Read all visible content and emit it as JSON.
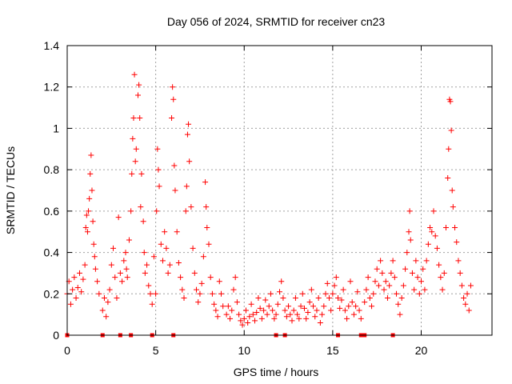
{
  "chart_data": {
    "type": "scatter",
    "title": "Day 056 of 2024, SRMTID for receiver cn23",
    "xlabel": "GPS time / hours",
    "ylabel": "SRMTID / TECUs",
    "xlim": [
      0,
      24
    ],
    "ylim": [
      0,
      1.4
    ],
    "xticks": [
      0,
      5,
      10,
      15,
      20
    ],
    "yticks": [
      0,
      0.2,
      0.4,
      0.6,
      0.8,
      1,
      1.2,
      1.4
    ],
    "xtick_labels": [
      "0",
      "5",
      "10",
      "15",
      "20"
    ],
    "ytick_labels": [
      "0",
      "0.2",
      "0.4",
      "0.6",
      "0.8",
      "1",
      "1.2",
      "1.4"
    ],
    "grid": true,
    "marker": "plus",
    "color": "#ff0000",
    "series": [
      {
        "name": "SRMTID",
        "points": [
          [
            0.0,
            0.2
          ],
          [
            0.1,
            0.26
          ],
          [
            0.2,
            0.15
          ],
          [
            0.3,
            0.22
          ],
          [
            0.4,
            0.28
          ],
          [
            0.5,
            0.18
          ],
          [
            0.6,
            0.23
          ],
          [
            0.7,
            0.3
          ],
          [
            0.8,
            0.21
          ],
          [
            0.9,
            0.27
          ],
          [
            1.0,
            0.34
          ],
          [
            1.05,
            0.52
          ],
          [
            1.1,
            0.58
          ],
          [
            1.15,
            0.5
          ],
          [
            1.2,
            0.6
          ],
          [
            1.25,
            0.66
          ],
          [
            1.3,
            0.78
          ],
          [
            1.35,
            0.87
          ],
          [
            1.4,
            0.7
          ],
          [
            1.45,
            0.55
          ],
          [
            1.5,
            0.44
          ],
          [
            1.55,
            0.38
          ],
          [
            1.6,
            0.32
          ],
          [
            1.7,
            0.26
          ],
          [
            1.8,
            0.2
          ],
          [
            2.0,
            0.12
          ],
          [
            2.1,
            0.18
          ],
          [
            2.2,
            0.09
          ],
          [
            2.3,
            0.16
          ],
          [
            2.4,
            0.22
          ],
          [
            2.5,
            0.34
          ],
          [
            2.6,
            0.42
          ],
          [
            2.7,
            0.28
          ],
          [
            2.8,
            0.18
          ],
          [
            2.9,
            0.57
          ],
          [
            3.0,
            0.3
          ],
          [
            3.1,
            0.26
          ],
          [
            3.2,
            0.36
          ],
          [
            3.3,
            0.4
          ],
          [
            3.35,
            0.32
          ],
          [
            3.4,
            0.28
          ],
          [
            3.5,
            0.46
          ],
          [
            3.6,
            0.6
          ],
          [
            3.65,
            0.78
          ],
          [
            3.7,
            0.95
          ],
          [
            3.75,
            1.05
          ],
          [
            3.8,
            1.26
          ],
          [
            3.85,
            0.84
          ],
          [
            3.9,
            0.9
          ],
          [
            4.0,
            1.16
          ],
          [
            4.05,
            1.21
          ],
          [
            4.1,
            1.05
          ],
          [
            4.15,
            0.62
          ],
          [
            4.2,
            0.78
          ],
          [
            4.3,
            0.55
          ],
          [
            4.35,
            0.4
          ],
          [
            4.4,
            0.3
          ],
          [
            4.5,
            0.34
          ],
          [
            4.6,
            0.24
          ],
          [
            4.7,
            0.2
          ],
          [
            4.8,
            0.15
          ],
          [
            4.9,
            0.38
          ],
          [
            5.0,
            0.2
          ],
          [
            5.05,
            0.6
          ],
          [
            5.1,
            0.9
          ],
          [
            5.15,
            0.8
          ],
          [
            5.2,
            0.72
          ],
          [
            5.3,
            0.44
          ],
          [
            5.4,
            0.36
          ],
          [
            5.5,
            0.5
          ],
          [
            5.6,
            0.42
          ],
          [
            5.7,
            0.3
          ],
          [
            5.8,
            0.34
          ],
          [
            5.9,
            1.05
          ],
          [
            5.95,
            1.2
          ],
          [
            6.0,
            1.14
          ],
          [
            6.05,
            0.82
          ],
          [
            6.1,
            0.7
          ],
          [
            6.2,
            0.5
          ],
          [
            6.3,
            0.35
          ],
          [
            6.4,
            0.28
          ],
          [
            6.5,
            0.22
          ],
          [
            6.6,
            0.18
          ],
          [
            6.7,
            0.6
          ],
          [
            6.75,
            0.72
          ],
          [
            6.8,
            0.97
          ],
          [
            6.85,
            1.02
          ],
          [
            6.9,
            0.84
          ],
          [
            7.0,
            0.62
          ],
          [
            7.1,
            0.42
          ],
          [
            7.2,
            0.3
          ],
          [
            7.3,
            0.22
          ],
          [
            7.4,
            0.16
          ],
          [
            7.5,
            0.2
          ],
          [
            7.6,
            0.25
          ],
          [
            7.7,
            0.38
          ],
          [
            7.8,
            0.74
          ],
          [
            7.85,
            0.62
          ],
          [
            7.9,
            0.52
          ],
          [
            8.0,
            0.44
          ],
          [
            8.1,
            0.28
          ],
          [
            8.2,
            0.2
          ],
          [
            8.3,
            0.15
          ],
          [
            8.4,
            0.12
          ],
          [
            8.5,
            0.09
          ],
          [
            8.6,
            0.26
          ],
          [
            8.7,
            0.2
          ],
          [
            8.8,
            0.14
          ],
          [
            9.0,
            0.1
          ],
          [
            9.1,
            0.14
          ],
          [
            9.2,
            0.08
          ],
          [
            9.3,
            0.12
          ],
          [
            9.4,
            0.22
          ],
          [
            9.5,
            0.28
          ],
          [
            9.6,
            0.16
          ],
          [
            9.7,
            0.1
          ],
          [
            9.8,
            0.07
          ],
          [
            9.9,
            0.05
          ],
          [
            10.0,
            0.08
          ],
          [
            10.1,
            0.12
          ],
          [
            10.2,
            0.06
          ],
          [
            10.3,
            0.09
          ],
          [
            10.4,
            0.15
          ],
          [
            10.5,
            0.1
          ],
          [
            10.6,
            0.07
          ],
          [
            10.7,
            0.11
          ],
          [
            10.8,
            0.18
          ],
          [
            10.9,
            0.13
          ],
          [
            11.0,
            0.08
          ],
          [
            11.1,
            0.12
          ],
          [
            11.2,
            0.17
          ],
          [
            11.3,
            0.1
          ],
          [
            11.4,
            0.14
          ],
          [
            11.5,
            0.2
          ],
          [
            11.6,
            0.12
          ],
          [
            11.7,
            0.08
          ],
          [
            11.8,
            0.1
          ],
          [
            11.9,
            0.15
          ],
          [
            12.0,
            0.21
          ],
          [
            12.1,
            0.26
          ],
          [
            12.2,
            0.18
          ],
          [
            12.3,
            0.12
          ],
          [
            12.4,
            0.09
          ],
          [
            12.5,
            0.14
          ],
          [
            12.6,
            0.1
          ],
          [
            12.7,
            0.07
          ],
          [
            12.8,
            0.12
          ],
          [
            12.9,
            0.18
          ],
          [
            13.0,
            0.1
          ],
          [
            13.1,
            0.08
          ],
          [
            13.2,
            0.14
          ],
          [
            13.3,
            0.2
          ],
          [
            13.4,
            0.13
          ],
          [
            13.5,
            0.08
          ],
          [
            13.6,
            0.11
          ],
          [
            13.7,
            0.16
          ],
          [
            13.8,
            0.22
          ],
          [
            13.9,
            0.14
          ],
          [
            14.0,
            0.09
          ],
          [
            14.1,
            0.12
          ],
          [
            14.2,
            0.18
          ],
          [
            14.3,
            0.06
          ],
          [
            14.4,
            0.1
          ],
          [
            14.5,
            0.14
          ],
          [
            14.6,
            0.2
          ],
          [
            14.7,
            0.25
          ],
          [
            14.8,
            0.18
          ],
          [
            14.9,
            0.12
          ],
          [
            15.0,
            0.2
          ],
          [
            15.1,
            0.24
          ],
          [
            15.2,
            0.28
          ],
          [
            15.3,
            0.18
          ],
          [
            15.4,
            0.13
          ],
          [
            15.5,
            0.17
          ],
          [
            15.6,
            0.22
          ],
          [
            15.7,
            0.12
          ],
          [
            15.8,
            0.08
          ],
          [
            15.9,
            0.14
          ],
          [
            16.0,
            0.26
          ],
          [
            16.1,
            0.16
          ],
          [
            16.2,
            0.1
          ],
          [
            16.3,
            0.14
          ],
          [
            16.4,
            0.21
          ],
          [
            16.5,
            0.12
          ],
          [
            16.6,
            0.08
          ],
          [
            16.8,
            0.16
          ],
          [
            16.9,
            0.22
          ],
          [
            17.0,
            0.28
          ],
          [
            17.1,
            0.18
          ],
          [
            17.2,
            0.14
          ],
          [
            17.3,
            0.2
          ],
          [
            17.4,
            0.26
          ],
          [
            17.5,
            0.32
          ],
          [
            17.6,
            0.24
          ],
          [
            17.7,
            0.36
          ],
          [
            17.8,
            0.3
          ],
          [
            17.9,
            0.22
          ],
          [
            18.0,
            0.26
          ],
          [
            18.1,
            0.18
          ],
          [
            18.2,
            0.24
          ],
          [
            18.3,
            0.3
          ],
          [
            18.4,
            0.36
          ],
          [
            18.5,
            0.28
          ],
          [
            18.6,
            0.2
          ],
          [
            18.7,
            0.15
          ],
          [
            18.8,
            0.1
          ],
          [
            18.9,
            0.18
          ],
          [
            19.0,
            0.24
          ],
          [
            19.1,
            0.32
          ],
          [
            19.2,
            0.4
          ],
          [
            19.3,
            0.5
          ],
          [
            19.35,
            0.6
          ],
          [
            19.4,
            0.46
          ],
          [
            19.5,
            0.3
          ],
          [
            19.6,
            0.22
          ],
          [
            19.7,
            0.36
          ],
          [
            19.8,
            0.28
          ],
          [
            19.9,
            0.2
          ],
          [
            20.0,
            0.26
          ],
          [
            20.1,
            0.32
          ],
          [
            20.2,
            0.22
          ],
          [
            20.3,
            0.36
          ],
          [
            20.4,
            0.44
          ],
          [
            20.5,
            0.52
          ],
          [
            20.6,
            0.5
          ],
          [
            20.7,
            0.6
          ],
          [
            20.8,
            0.48
          ],
          [
            20.9,
            0.42
          ],
          [
            21.0,
            0.34
          ],
          [
            21.1,
            0.28
          ],
          [
            21.2,
            0.22
          ],
          [
            21.3,
            0.3
          ],
          [
            21.4,
            0.52
          ],
          [
            21.5,
            0.76
          ],
          [
            21.55,
            0.9
          ],
          [
            21.6,
            1.14
          ],
          [
            21.65,
            1.13
          ],
          [
            21.7,
            0.99
          ],
          [
            21.75,
            0.7
          ],
          [
            21.8,
            0.62
          ],
          [
            21.9,
            0.52
          ],
          [
            22.0,
            0.45
          ],
          [
            22.1,
            0.36
          ],
          [
            22.2,
            0.3
          ],
          [
            22.3,
            0.24
          ],
          [
            22.4,
            0.18
          ],
          [
            22.5,
            0.15
          ],
          [
            22.6,
            0.2
          ],
          [
            22.7,
            0.12
          ],
          [
            22.8,
            0.24
          ]
        ]
      },
      {
        "name": "gaps",
        "marker": "square",
        "points": [
          [
            0.0,
            0
          ],
          [
            2.0,
            0
          ],
          [
            3.0,
            0
          ],
          [
            3.6,
            0
          ],
          [
            4.8,
            0
          ],
          [
            6.0,
            0
          ],
          [
            11.8,
            0
          ],
          [
            12.3,
            0
          ],
          [
            15.3,
            0
          ],
          [
            16.6,
            0
          ],
          [
            16.7,
            0
          ],
          [
            16.8,
            0
          ],
          [
            18.4,
            0
          ]
        ]
      }
    ]
  }
}
